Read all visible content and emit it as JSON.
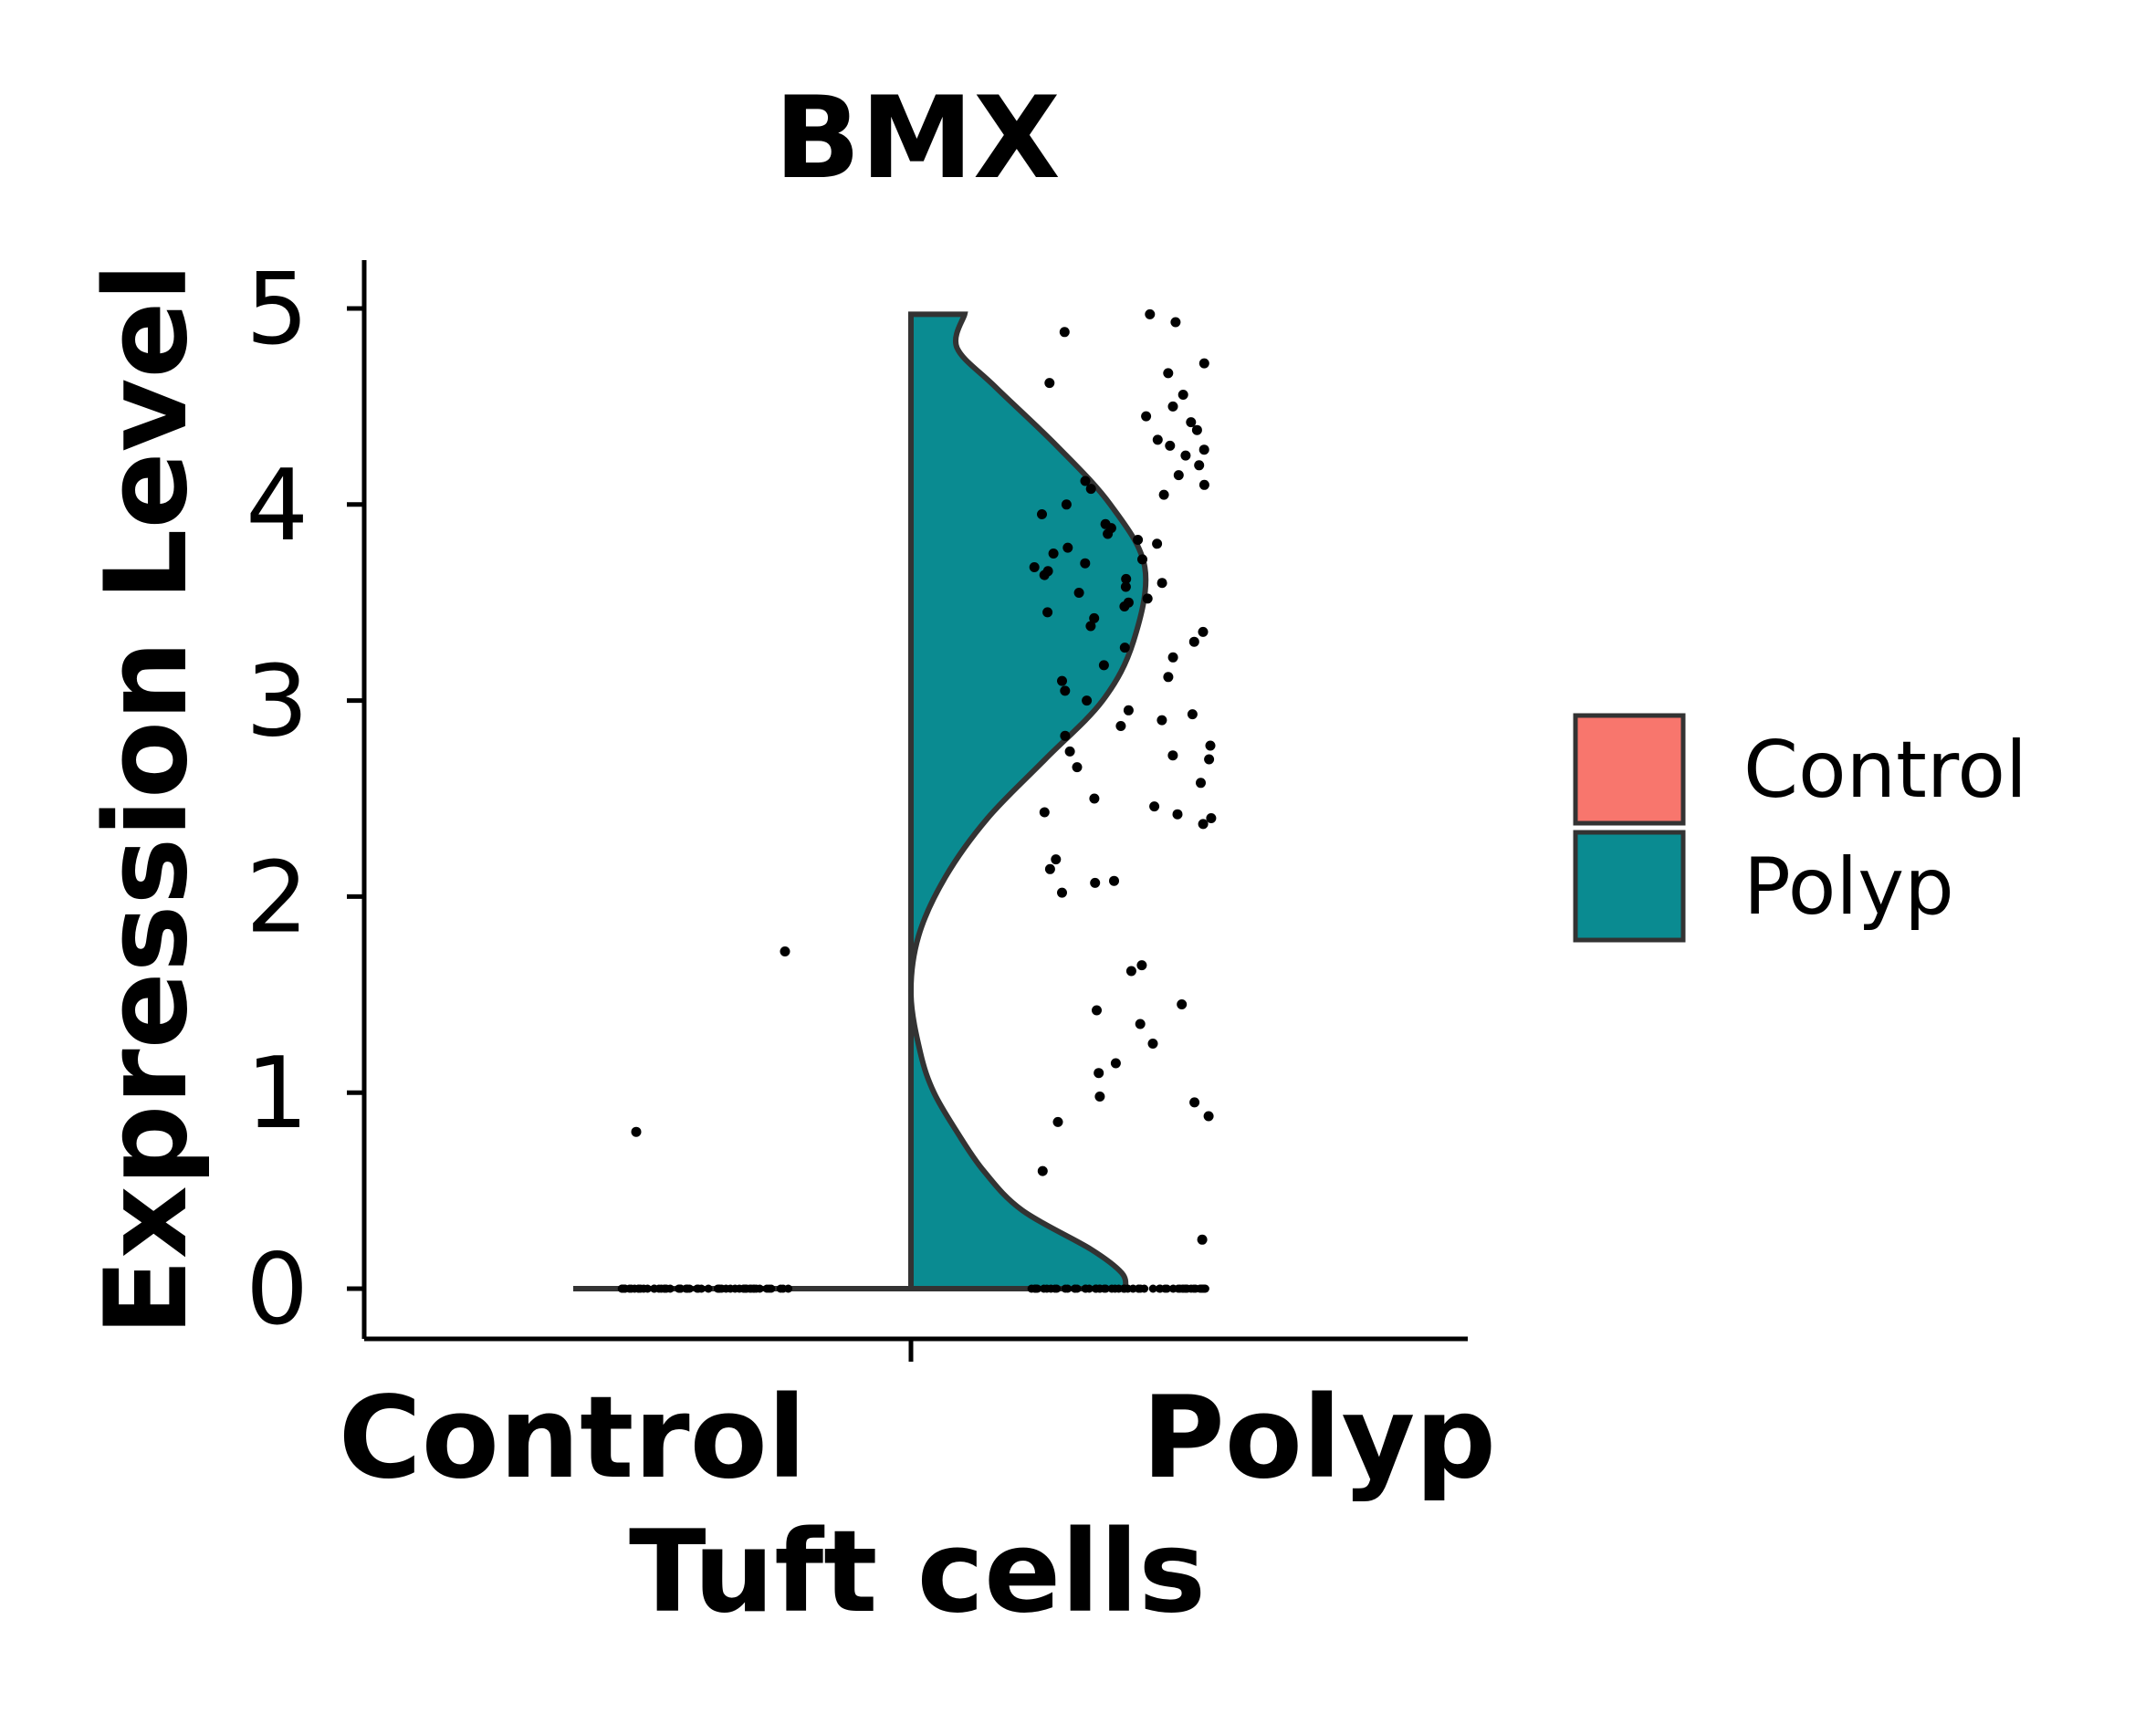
{
  "chart_data": {
    "type": "violin",
    "title": "BMX",
    "xlabel": "Tuft cells",
    "ylabel": "Expression Level",
    "categories": [
      "Control",
      "Polyp"
    ],
    "ylim": [
      -0.25,
      5.25
    ],
    "yticks": [
      "0",
      "1",
      "2",
      "3",
      "4",
      "5"
    ],
    "grid": false,
    "legend": {
      "placement": "right",
      "entries": [
        {
          "label": "Control",
          "color": "#F8766D"
        },
        {
          "label": "Polyp",
          "color": "#0A8B91"
        }
      ]
    },
    "series": [
      {
        "name": "Control",
        "color": "#F8766D",
        "density": [
          [
            0.0,
            1.0
          ]
        ],
        "points_nonzero": [
          0.8,
          1.72
        ],
        "zero_count": 60
      },
      {
        "name": "Polyp",
        "color": "#0A8B91",
        "density": [
          [
            0.0,
            0.56
          ],
          [
            0.08,
            0.55
          ],
          [
            0.2,
            0.47
          ],
          [
            0.4,
            0.29
          ],
          [
            0.6,
            0.19
          ],
          [
            0.8,
            0.12
          ],
          [
            1.0,
            0.06
          ],
          [
            1.2,
            0.025
          ],
          [
            1.5,
            0.0
          ],
          [
            1.8,
            0.02
          ],
          [
            2.1,
            0.09
          ],
          [
            2.4,
            0.2
          ],
          [
            2.7,
            0.35
          ],
          [
            3.0,
            0.5
          ],
          [
            3.3,
            0.58
          ],
          [
            3.68,
            0.61
          ],
          [
            4.0,
            0.52
          ],
          [
            4.3,
            0.38
          ],
          [
            4.6,
            0.22
          ],
          [
            4.8,
            0.12
          ],
          [
            4.97,
            0.14
          ]
        ],
        "points_zero_count": 60,
        "points_nonzero": [
          0.25,
          0.6,
          0.85,
          0.88,
          0.95,
          0.98,
          1.1,
          1.15,
          1.25,
          1.35,
          1.42,
          1.45,
          1.62,
          1.65,
          2.02,
          2.07,
          2.08,
          2.14,
          2.19,
          2.37,
          2.4,
          2.42,
          2.43,
          2.46,
          2.5,
          2.58,
          2.66,
          2.7,
          2.72,
          2.74,
          2.77,
          2.82,
          2.87,
          2.9,
          2.93,
          2.95,
          3.0,
          3.05,
          3.1,
          3.12,
          3.18,
          3.22,
          3.27,
          3.3,
          3.35,
          3.38,
          3.42,
          3.45,
          3.48,
          3.5,
          3.52,
          3.55,
          3.58,
          3.6,
          3.62,
          3.64,
          3.66,
          3.68,
          3.7,
          3.72,
          3.75,
          3.78,
          3.8,
          3.82,
          3.85,
          3.88,
          3.9,
          3.95,
          4.0,
          4.05,
          4.08,
          4.1,
          4.12,
          4.15,
          4.2,
          4.25,
          4.28,
          4.3,
          4.33,
          4.38,
          4.42,
          4.45,
          4.5,
          4.56,
          4.62,
          4.67,
          4.72,
          4.88,
          4.93,
          4.97
        ]
      }
    ]
  }
}
